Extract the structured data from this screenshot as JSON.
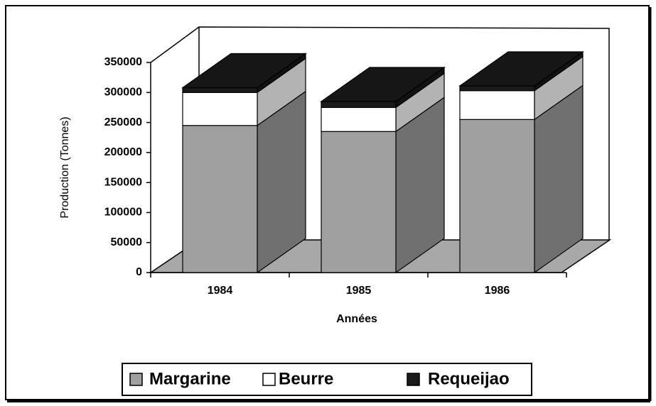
{
  "chart_data": {
    "type": "bar3d_stacked",
    "categories": [
      "1984",
      "1985",
      "1986"
    ],
    "series": [
      {
        "name": "Margarine",
        "color": "#a0a0a0",
        "values": [
          245000,
          235000,
          255000
        ]
      },
      {
        "name": "Beurre",
        "color": "#ffffff",
        "values": [
          55000,
          40000,
          48000
        ]
      },
      {
        "name": "Requeijao",
        "color": "#1a1a1a",
        "values": [
          8000,
          10000,
          8000
        ]
      }
    ],
    "ylabel": "Production (Tonnes)",
    "xlabel": "Années",
    "ylim": [
      0,
      350000
    ],
    "yticks": [
      0,
      50000,
      100000,
      150000,
      200000,
      250000,
      300000,
      350000
    ],
    "grid": false,
    "legend": "bottom"
  }
}
